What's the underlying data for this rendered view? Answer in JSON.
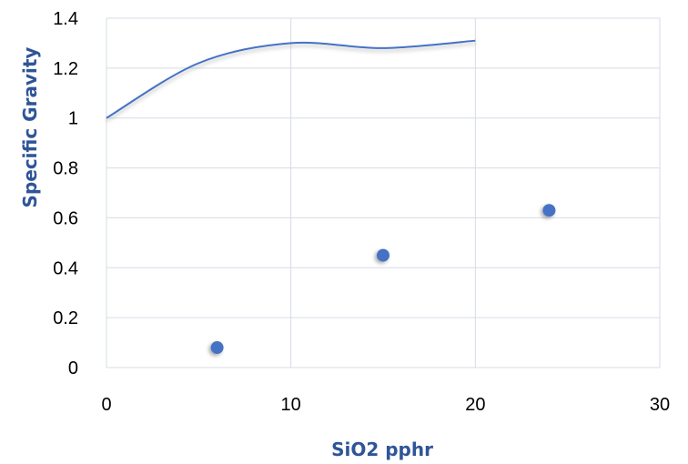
{
  "chart_data": {
    "type": "scatter",
    "title": "",
    "xlabel": "SiO2 pphr",
    "ylabel": "Specific Gravity",
    "xlim": [
      0,
      30
    ],
    "ylim": [
      0,
      1.4
    ],
    "x_ticks": [
      "0",
      "10",
      "20",
      "30"
    ],
    "y_ticks": [
      "0",
      "0.2",
      "0.4",
      "0.6",
      "0.8",
      "1",
      "1.2",
      "1.4"
    ],
    "grid": true,
    "legend": "none",
    "series": [
      {
        "type": "scatter",
        "color": "#4472c4",
        "x": [
          6,
          15,
          24
        ],
        "y": [
          0.08,
          0.45,
          0.63
        ]
      },
      {
        "type": "line",
        "smooth": true,
        "color": "#4472c4",
        "x": [
          0,
          5,
          10,
          15,
          20
        ],
        "y": [
          1.0,
          1.22,
          1.3,
          1.28,
          1.31
        ]
      }
    ]
  }
}
